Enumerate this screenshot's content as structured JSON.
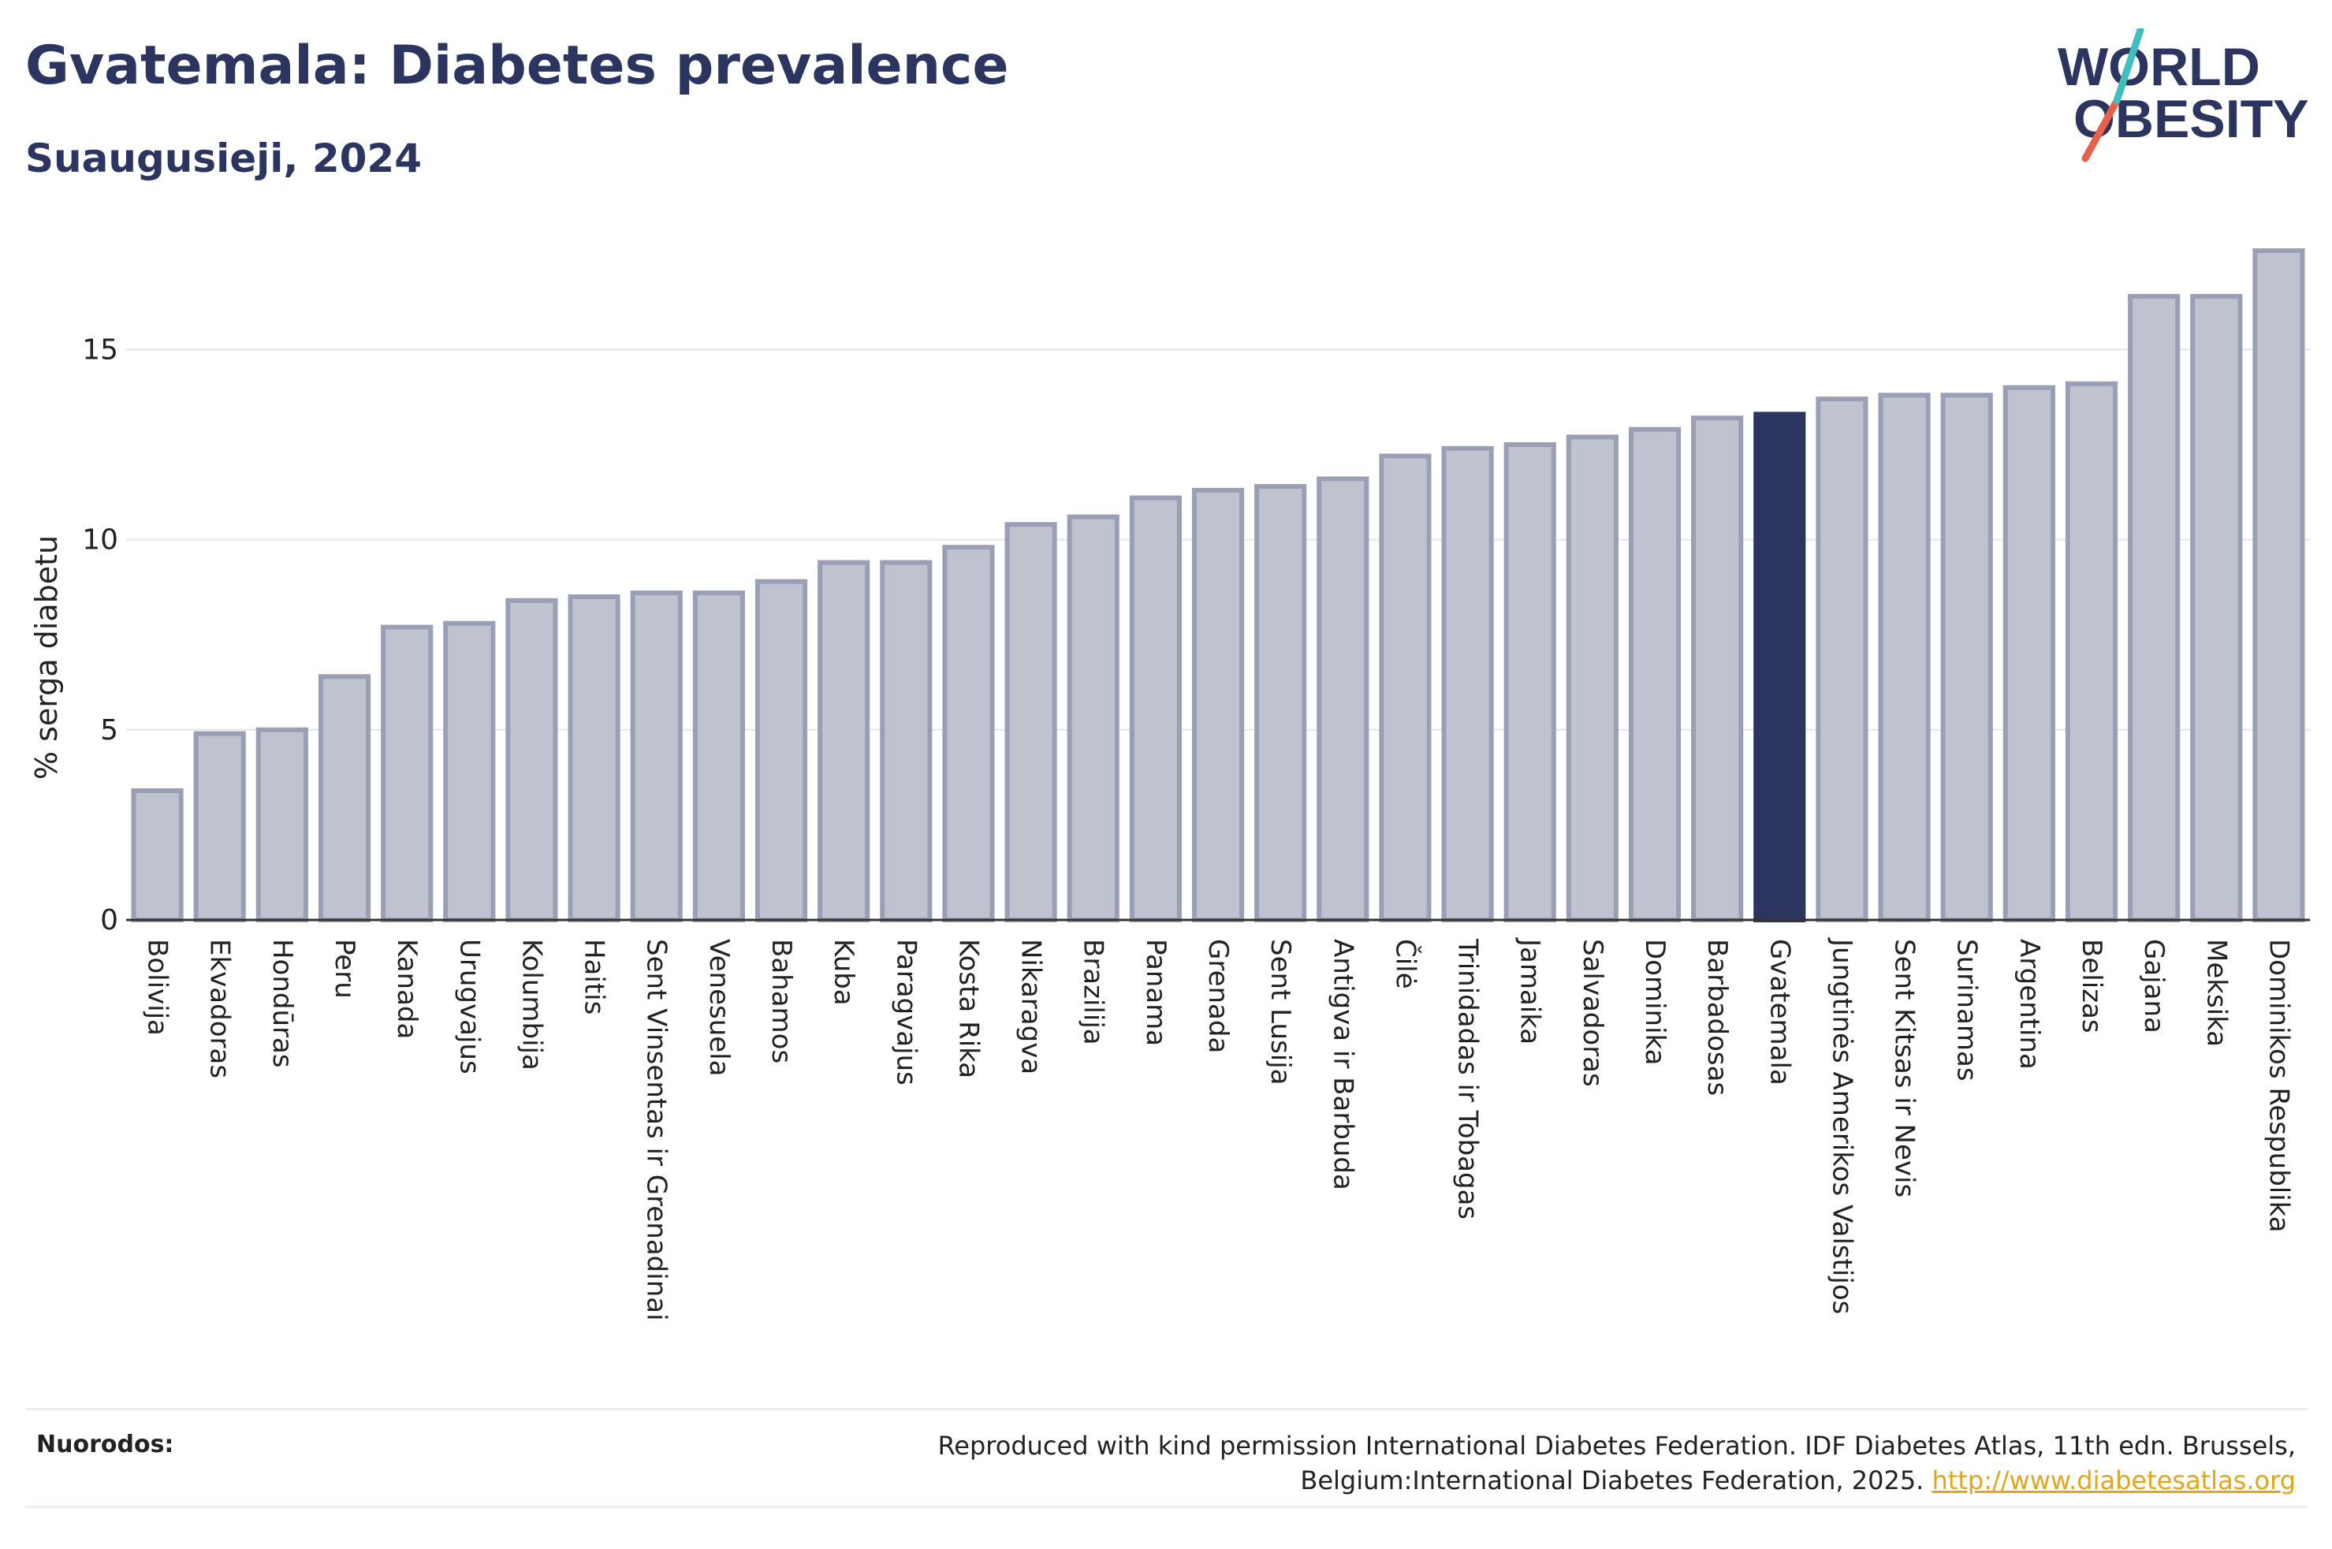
{
  "header": {
    "title": "Gvatemala: Diabetes prevalence",
    "subtitle": "Suaugusieji, 2024"
  },
  "logo": {
    "line1": "WORLD",
    "line2": "OBESITY"
  },
  "colors": {
    "bar_default": "#bfc2cf",
    "bar_default_stroke": "#9a9fb5",
    "bar_highlight": "#2b3560",
    "title": "#2b3560",
    "grid": "#e6e6e6",
    "link": "#e3a51c",
    "logo_teal": "#3fbfbf",
    "logo_red": "#e8604c"
  },
  "chart_data": {
    "type": "bar",
    "ylabel": "% serga diabetu",
    "xlabel": "",
    "ylim": [
      0,
      17.6
    ],
    "yticks": [
      0,
      5,
      10,
      15
    ],
    "grid": true,
    "highlight": "Gvatemala",
    "categories": [
      "Bolivija",
      "Ekvadoras",
      "Hondūras",
      "Peru",
      "Kanada",
      "Urugvajus",
      "Kolumbija",
      "Haitis",
      "Sent Vinsentas ir Grenadinai",
      "Venesuela",
      "Bahamos",
      "Kuba",
      "Paragvajus",
      "Kosta Rika",
      "Nikaragva",
      "Brazilija",
      "Panama",
      "Grenada",
      "Sent Lusija",
      "Antigva ir Barbuda",
      "Čilė",
      "Trinidadas ir Tobagas",
      "Jamaika",
      "Salvadoras",
      "Dominika",
      "Barbadosas",
      "Gvatemala",
      "Jungtinės Amerikos Valstijos",
      "Sent Kitsas ir Nevis",
      "Surinamas",
      "Argentina",
      "Belizas",
      "Gajana",
      "Meksika",
      "Dominikos Respublika"
    ],
    "values": [
      3.4,
      4.9,
      5.0,
      6.4,
      7.7,
      7.8,
      8.4,
      8.5,
      8.6,
      8.6,
      8.9,
      9.4,
      9.4,
      9.8,
      10.4,
      10.6,
      11.1,
      11.3,
      11.4,
      11.6,
      12.2,
      12.4,
      12.5,
      12.7,
      12.9,
      13.2,
      13.3,
      13.7,
      13.8,
      13.8,
      14.0,
      14.1,
      16.4,
      16.4,
      17.6
    ]
  },
  "references": {
    "label": "Nuorodos:",
    "text": "Reproduced with kind permission International Diabetes Federation. IDF Diabetes Atlas, 11th edn. Brussels, Belgium:International Diabetes Federation, 2025.",
    "link": "http://www.diabetesatlas.org"
  }
}
